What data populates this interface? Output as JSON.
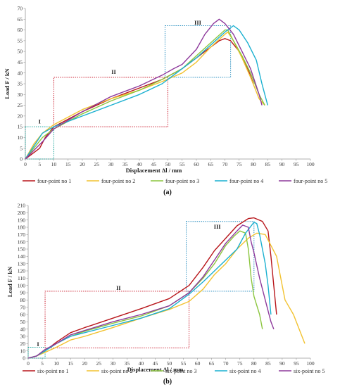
{
  "chart_data": [
    {
      "type": "line",
      "panel_label": "(a)",
      "xlabel": "Displacement Δl / mm",
      "ylabel": "Load F / kN",
      "xlim": [
        0,
        100
      ],
      "ylim": [
        0,
        70
      ],
      "x_ticks": [
        0,
        5,
        10,
        15,
        20,
        25,
        30,
        35,
        40,
        45,
        50,
        55,
        60,
        65,
        70,
        75,
        80,
        85,
        90,
        95,
        100
      ],
      "y_ticks": [
        0,
        5,
        10,
        15,
        20,
        25,
        30,
        35,
        40,
        45,
        50,
        55,
        60,
        65,
        70
      ],
      "grid": false,
      "legend_position": "bottom",
      "zones": [
        {
          "label": "I",
          "color": "#1aa39a",
          "x": [
            0,
            10
          ],
          "y": [
            0,
            15
          ]
        },
        {
          "label": "II",
          "color": "#cc2233",
          "x": [
            10,
            50
          ],
          "y": [
            15,
            38
          ]
        },
        {
          "label": "III",
          "color": "#2a8fc0",
          "x": [
            49,
            72
          ],
          "y": [
            38,
            62
          ]
        }
      ],
      "series": [
        {
          "name": "four-point no 1",
          "color": "#b8161b",
          "points": [
            [
              0,
              0
            ],
            [
              2,
              2
            ],
            [
              5,
              5
            ],
            [
              7,
              10
            ],
            [
              10,
              15
            ],
            [
              20,
              22
            ],
            [
              30,
              28
            ],
            [
              40,
              33
            ],
            [
              48,
              37
            ],
            [
              55,
              42
            ],
            [
              60,
              47
            ],
            [
              65,
              52
            ],
            [
              68,
              55
            ],
            [
              70,
              56
            ],
            [
              72,
              55
            ],
            [
              75,
              50
            ],
            [
              78,
              42
            ],
            [
              80,
              35
            ]
          ]
        },
        {
          "name": "four-point no 2",
          "color": "#f2c230",
          "points": [
            [
              0,
              0
            ],
            [
              3,
              7
            ],
            [
              6,
              12
            ],
            [
              10,
              16
            ],
            [
              20,
              23
            ],
            [
              30,
              28
            ],
            [
              40,
              32
            ],
            [
              48,
              36
            ],
            [
              55,
              40
            ],
            [
              60,
              45
            ],
            [
              65,
              52
            ],
            [
              70,
              58
            ],
            [
              71,
              59
            ],
            [
              73,
              55
            ],
            [
              76,
              47
            ],
            [
              79,
              38
            ],
            [
              82,
              28
            ],
            [
              84,
              25
            ]
          ]
        },
        {
          "name": "four-point no 3",
          "color": "#8cc63f",
          "points": [
            [
              0,
              0
            ],
            [
              3,
              5
            ],
            [
              6,
              10
            ],
            [
              10,
              14
            ],
            [
              20,
              21
            ],
            [
              30,
              27
            ],
            [
              40,
              32
            ],
            [
              48,
              37
            ],
            [
              55,
              42
            ],
            [
              60,
              48
            ],
            [
              65,
              54
            ],
            [
              70,
              60
            ],
            [
              71,
              60
            ],
            [
              73,
              55
            ],
            [
              76,
              48
            ],
            [
              79,
              40
            ],
            [
              82,
              30
            ],
            [
              84,
              25
            ]
          ]
        },
        {
          "name": "four-point no 4",
          "color": "#1ab0d0",
          "points": [
            [
              0,
              0
            ],
            [
              3,
              6
            ],
            [
              6,
              12
            ],
            [
              10,
              15
            ],
            [
              20,
              20
            ],
            [
              30,
              25
            ],
            [
              40,
              30
            ],
            [
              48,
              35
            ],
            [
              52,
              39
            ],
            [
              55,
              42
            ],
            [
              60,
              47
            ],
            [
              65,
              53
            ],
            [
              70,
              59
            ],
            [
              73,
              62
            ],
            [
              75,
              60
            ],
            [
              78,
              54
            ],
            [
              81,
              46
            ],
            [
              83,
              35
            ],
            [
              85,
              25
            ]
          ]
        },
        {
          "name": "four-point no 5",
          "color": "#8e3a9c",
          "points": [
            [
              0,
              0
            ],
            [
              3,
              4
            ],
            [
              6,
              8
            ],
            [
              10,
              14
            ],
            [
              20,
              22
            ],
            [
              30,
              29
            ],
            [
              40,
              34
            ],
            [
              48,
              39
            ],
            [
              52,
              42
            ],
            [
              55,
              44
            ],
            [
              60,
              51
            ],
            [
              63,
              58
            ],
            [
              66,
              63
            ],
            [
              68,
              65
            ],
            [
              70,
              63
            ],
            [
              73,
              58
            ],
            [
              76,
              50
            ],
            [
              79,
              42
            ],
            [
              82,
              30
            ],
            [
              83,
              25
            ]
          ]
        }
      ]
    },
    {
      "type": "line",
      "panel_label": "(b)",
      "xlabel": "Displacement Δl / mm",
      "ylabel": "Load F / kN",
      "xlim": [
        0,
        100
      ],
      "ylim": [
        0,
        210
      ],
      "x_ticks": [
        0,
        5,
        10,
        15,
        20,
        25,
        30,
        35,
        40,
        45,
        50,
        55,
        60,
        65,
        70,
        75,
        80,
        85,
        90,
        95,
        100
      ],
      "y_ticks": [
        0,
        10,
        20,
        30,
        40,
        50,
        60,
        70,
        80,
        90,
        100,
        110,
        120,
        130,
        140,
        150,
        160,
        170,
        180,
        190,
        200,
        210
      ],
      "grid": false,
      "legend_position": "bottom",
      "zones": [
        {
          "label": "I",
          "color": "#1aa39a",
          "x": [
            0,
            6
          ],
          "y": [
            0,
            15
          ]
        },
        {
          "label": "II",
          "color": "#cc2233",
          "x": [
            6,
            57
          ],
          "y": [
            14,
            92
          ]
        },
        {
          "label": "III",
          "color": "#2a8fc0",
          "x": [
            56,
            80
          ],
          "y": [
            92,
            188
          ]
        }
      ],
      "series": [
        {
          "name": "six-point no 1",
          "color": "#b8161b",
          "points": [
            [
              0,
              0
            ],
            [
              3,
              3
            ],
            [
              6,
              10
            ],
            [
              10,
              22
            ],
            [
              15,
              35
            ],
            [
              20,
              42
            ],
            [
              30,
              55
            ],
            [
              40,
              68
            ],
            [
              50,
              82
            ],
            [
              57,
              100
            ],
            [
              62,
              125
            ],
            [
              66,
              148
            ],
            [
              70,
              165
            ],
            [
              74,
              182
            ],
            [
              78,
              192
            ],
            [
              80,
              193
            ],
            [
              83,
              188
            ],
            [
              85,
              175
            ],
            [
              86,
              140
            ],
            [
              87,
              100
            ],
            [
              88,
              60
            ]
          ]
        },
        {
          "name": "six-point no 2",
          "color": "#f2c230",
          "points": [
            [
              0,
              0
            ],
            [
              3,
              3
            ],
            [
              6,
              8
            ],
            [
              10,
              15
            ],
            [
              15,
              25
            ],
            [
              20,
              30
            ],
            [
              30,
              42
            ],
            [
              40,
              55
            ],
            [
              50,
              67
            ],
            [
              57,
              78
            ],
            [
              62,
              95
            ],
            [
              66,
              115
            ],
            [
              70,
              130
            ],
            [
              74,
              150
            ],
            [
              78,
              165
            ],
            [
              81,
              172
            ],
            [
              84,
              170
            ],
            [
              88,
              140
            ],
            [
              90,
              100
            ],
            [
              91,
              80
            ],
            [
              94,
              60
            ],
            [
              96,
              40
            ],
            [
              98,
              20
            ]
          ]
        },
        {
          "name": "six-point no 3",
          "color": "#8cc63f",
          "points": [
            [
              0,
              0
            ],
            [
              3,
              3
            ],
            [
              6,
              10
            ],
            [
              10,
              20
            ],
            [
              15,
              30
            ],
            [
              20,
              37
            ],
            [
              30,
              48
            ],
            [
              40,
              58
            ],
            [
              50,
              72
            ],
            [
              57,
              90
            ],
            [
              62,
              110
            ],
            [
              66,
              130
            ],
            [
              70,
              155
            ],
            [
              73,
              168
            ],
            [
              75,
              175
            ],
            [
              77,
              172
            ],
            [
              78,
              150
            ],
            [
              79,
              110
            ],
            [
              80,
              85
            ],
            [
              82,
              60
            ],
            [
              83,
              40
            ]
          ]
        },
        {
          "name": "six-point no 4",
          "color": "#1ab0d0",
          "points": [
            [
              0,
              0
            ],
            [
              3,
              3
            ],
            [
              6,
              10
            ],
            [
              10,
              20
            ],
            [
              15,
              30
            ],
            [
              20,
              35
            ],
            [
              30,
              45
            ],
            [
              40,
              55
            ],
            [
              50,
              68
            ],
            [
              57,
              88
            ],
            [
              62,
              105
            ],
            [
              66,
              120
            ],
            [
              70,
              135
            ],
            [
              74,
              150
            ],
            [
              77,
              172
            ],
            [
              80,
              187
            ],
            [
              81,
              185
            ],
            [
              82,
              170
            ],
            [
              84,
              130
            ],
            [
              85,
              100
            ],
            [
              86,
              60
            ]
          ]
        },
        {
          "name": "six-point no 5",
          "color": "#8e3a9c",
          "points": [
            [
              0,
              0
            ],
            [
              3,
              3
            ],
            [
              6,
              12
            ],
            [
              10,
              20
            ],
            [
              15,
              32
            ],
            [
              20,
              38
            ],
            [
              30,
              50
            ],
            [
              40,
              60
            ],
            [
              50,
              72
            ],
            [
              57,
              90
            ],
            [
              62,
              112
            ],
            [
              66,
              135
            ],
            [
              70,
              158
            ],
            [
              74,
              175
            ],
            [
              76,
              183
            ],
            [
              78,
              180
            ],
            [
              79,
              160
            ],
            [
              80,
              145
            ],
            [
              82,
              110
            ],
            [
              84,
              80
            ],
            [
              86,
              50
            ],
            [
              87,
              40
            ]
          ]
        }
      ]
    }
  ]
}
